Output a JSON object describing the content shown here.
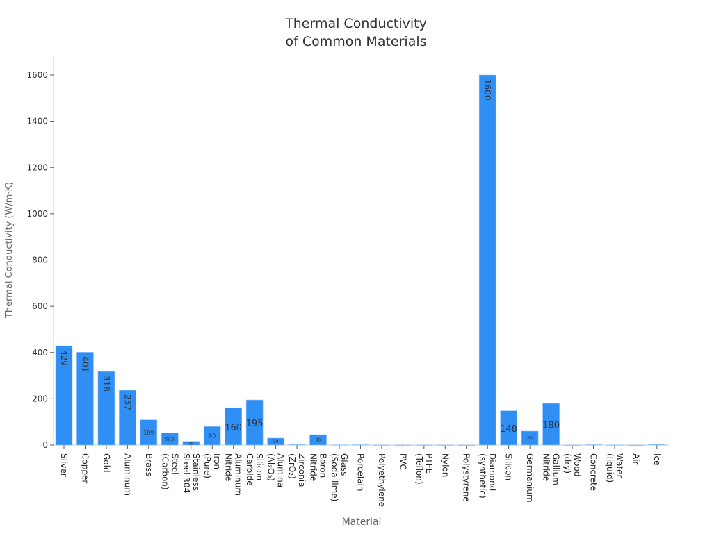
{
  "chart_data": {
    "type": "bar",
    "title": "Thermal Conductivity\nof Common Materials",
    "xlabel": "Material",
    "ylabel": "Thermal Conductivity (W/m·K)",
    "ylim": [
      0,
      1680
    ],
    "yticks": [
      0,
      200,
      400,
      600,
      800,
      1000,
      1200,
      1400,
      1600
    ],
    "grid": false,
    "bar_color": "#2f8ff5",
    "categories": [
      "Silver",
      "Copper",
      "Gold",
      "Aluminum",
      "Brass",
      "Steel\n(Carbon)",
      "Stainless\nSteel 304",
      "Iron\n(Pure)",
      "Aluminum\nNitride",
      "Silicon\nCarbide",
      "Alumina\n(Al₂O₃)",
      "Zirconia\n(ZrO₂)",
      "Boron\nNitride",
      "Glass\n(Soda-lime)",
      "Porcelain",
      "Polyethylene",
      "PVC",
      "PTFE\n(Teflon)",
      "Nylon",
      "Polystyrene",
      "Diamond\n(synthetic)",
      "Silicon",
      "Germanium",
      "Gallium\nNitride",
      "Wood\n(dry)",
      "Concrete",
      "Water\n(liquid)",
      "Air",
      "Ice"
    ],
    "values": [
      429,
      401,
      318,
      237,
      109,
      52.5,
      16,
      80,
      160,
      195,
      30,
      2,
      45,
      1,
      1.5,
      0.4,
      0.19,
      0.25,
      0.25,
      0.03,
      1600,
      148,
      60,
      180,
      0.12,
      1.7,
      0.6,
      0.026,
      2.2
    ],
    "data_labels": [
      "429",
      "401",
      "318",
      "237",
      "109",
      "52.5",
      "16",
      "80",
      "160",
      "195",
      "30",
      "",
      "45",
      "",
      "",
      "",
      "",
      "",
      "",
      "",
      "1600",
      "148",
      "60",
      "180",
      "",
      "",
      "",
      "",
      ""
    ]
  }
}
